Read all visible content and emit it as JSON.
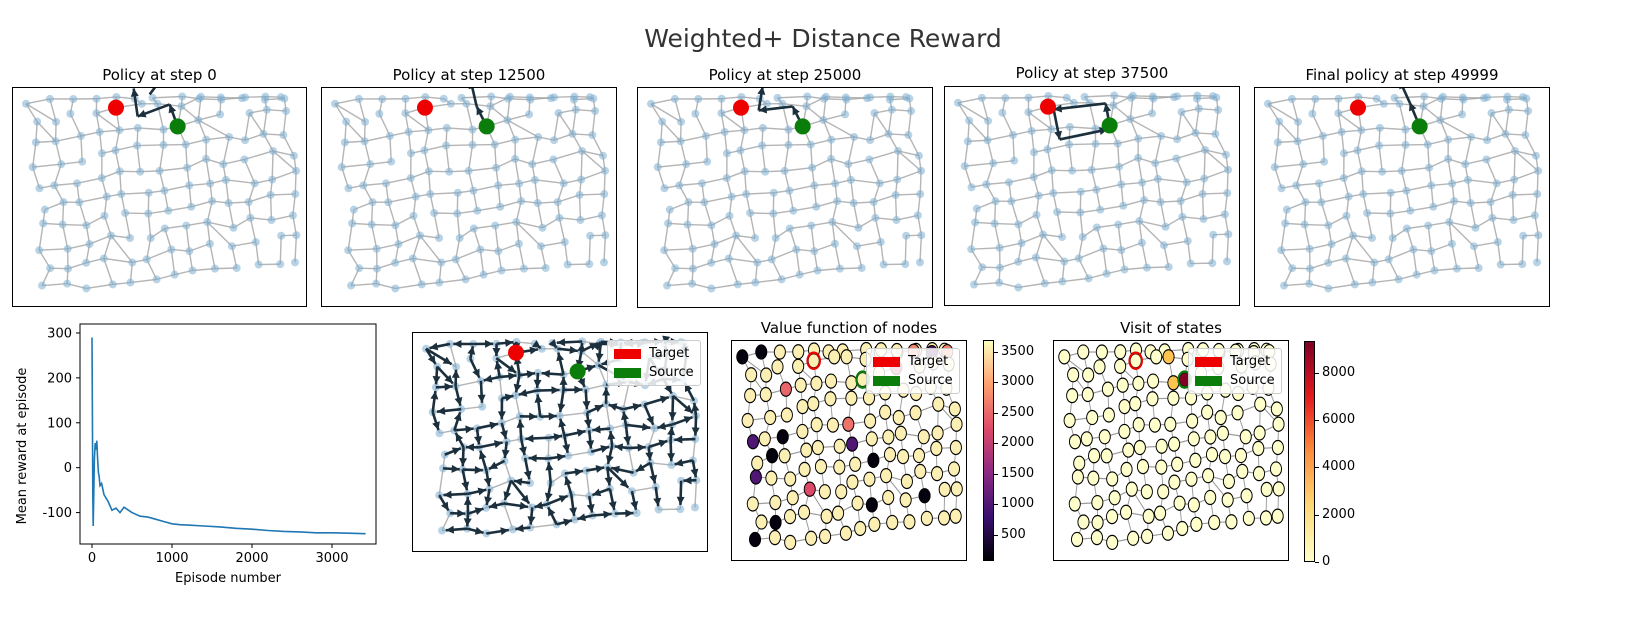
{
  "figure": {
    "suptitle": "Weighted+ Distance Reward"
  },
  "policy_panels": [
    {
      "title": "Policy at step 0"
    },
    {
      "title": "Policy at step 12500"
    },
    {
      "title": "Policy at step 25000"
    },
    {
      "title": "Policy at step 37500"
    },
    {
      "title": "Final policy at step 49999"
    }
  ],
  "legend": {
    "target": "Target",
    "source": "Source"
  },
  "value_panel": {
    "title": "Value function of nodes",
    "colorbar_ticks": [
      "3500",
      "3000",
      "2500",
      "2000",
      "1500",
      "1000",
      "500"
    ],
    "colormap": "magma"
  },
  "visit_panel": {
    "title": "Visit of states",
    "colorbar_ticks": [
      "8000",
      "6000",
      "4000",
      "2000",
      "0"
    ],
    "colormap": "YlOrRd"
  },
  "colors": {
    "target": "#ee0000",
    "source": "#0a7d0a",
    "node": "#7eaed2",
    "edge": "#9c9c9c",
    "arrow": "#1b2f3d",
    "line": "#1f77b4"
  },
  "chart_data": [
    {
      "type": "line",
      "title": "",
      "xlabel": "Episode number",
      "ylabel": "Mean reward at episode",
      "xlim": [
        -150,
        3550
      ],
      "ylim": [
        -170,
        320
      ],
      "xticks": [
        0,
        1000,
        2000,
        3000
      ],
      "yticks": [
        -100,
        0,
        100,
        200,
        300
      ],
      "x": [
        0,
        5,
        10,
        15,
        20,
        30,
        40,
        50,
        60,
        70,
        80,
        90,
        100,
        120,
        150,
        200,
        250,
        300,
        350,
        400,
        500,
        600,
        700,
        800,
        900,
        1000,
        1100,
        1200,
        1400,
        1600,
        1800,
        2000,
        2200,
        2400,
        2600,
        2800,
        3000,
        3200,
        3420
      ],
      "y": [
        290,
        120,
        -60,
        -130,
        -80,
        20,
        55,
        40,
        60,
        20,
        -10,
        -20,
        -40,
        -35,
        -60,
        -75,
        -95,
        -90,
        -100,
        -88,
        -100,
        -108,
        -110,
        -115,
        -120,
        -125,
        -127,
        -128,
        -130,
        -132,
        -135,
        -137,
        -140,
        -142,
        -143,
        -145,
        -145,
        -146,
        -147
      ]
    }
  ]
}
